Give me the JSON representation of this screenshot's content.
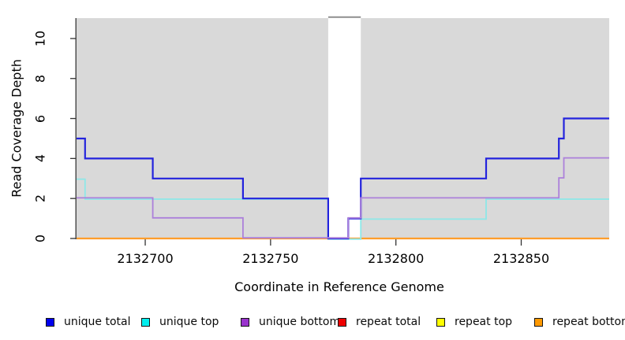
{
  "figure": {
    "background": "#ffffff",
    "plot_background": "#d9d9d9",
    "gap_border_color": "#8e8e8e",
    "axis_color": "#333333"
  },
  "chart_data": {
    "type": "line",
    "subtype": "step-coverage-plot",
    "title": "",
    "xlabel": "Coordinate in Reference Genome",
    "ylabel": "Read Coverage Depth",
    "xlim": [
      2132672.6,
      2132885.1
    ],
    "ylim": [
      0,
      11.02
    ],
    "x_end": 2132885.1,
    "x_ticks": [
      2132700,
      2132750,
      2132800,
      2132850
    ],
    "y_ticks": [
      0,
      2,
      4,
      6,
      8,
      10
    ],
    "grid": false,
    "legend_position": "bottom",
    "plot_bg": "#d9d9d9",
    "gap_region": {
      "x_start": 2132773,
      "x_end": 2132786,
      "fill": "#ffffff",
      "note": "uncovered/white gap in shaded region"
    },
    "series": [
      {
        "name": "unique total",
        "color": "#0000ee",
        "line_color": "#2323dd",
        "points": [
          [
            2132672.6,
            5
          ],
          [
            2132676,
            4
          ],
          [
            2132703,
            3
          ],
          [
            2132739,
            2
          ],
          [
            2132773,
            0
          ],
          [
            2132781,
            1
          ],
          [
            2132786,
            3
          ],
          [
            2132836,
            4
          ],
          [
            2132865,
            5
          ],
          [
            2132867,
            6
          ]
        ]
      },
      {
        "name": "unique top",
        "color": "#00eeee",
        "line_color": "#8de8e8",
        "points": [
          [
            2132672.6,
            3
          ],
          [
            2132676,
            2
          ],
          [
            2132773,
            0
          ],
          [
            2132786,
            1
          ],
          [
            2132836,
            2
          ]
        ]
      },
      {
        "name": "unique bottom",
        "color": "#9932cc",
        "line_color": "#ac80da",
        "points": [
          [
            2132672.6,
            2
          ],
          [
            2132703,
            1
          ],
          [
            2132739,
            0
          ],
          [
            2132781,
            1
          ],
          [
            2132786,
            2
          ],
          [
            2132865,
            3
          ],
          [
            2132867,
            4
          ]
        ]
      },
      {
        "name": "repeat total",
        "color": "#ee0000",
        "line_color": "#dd2222",
        "points": [
          [
            2132672.6,
            0
          ]
        ]
      },
      {
        "name": "repeat top",
        "color": "#ffff00",
        "line_color": "#f2f25a",
        "points": [
          [
            2132672.6,
            0
          ]
        ]
      },
      {
        "name": "repeat bottom",
        "color": "#ff9900",
        "line_color": "#ff9d2b",
        "points": [
          [
            2132672.6,
            0
          ]
        ]
      }
    ]
  }
}
